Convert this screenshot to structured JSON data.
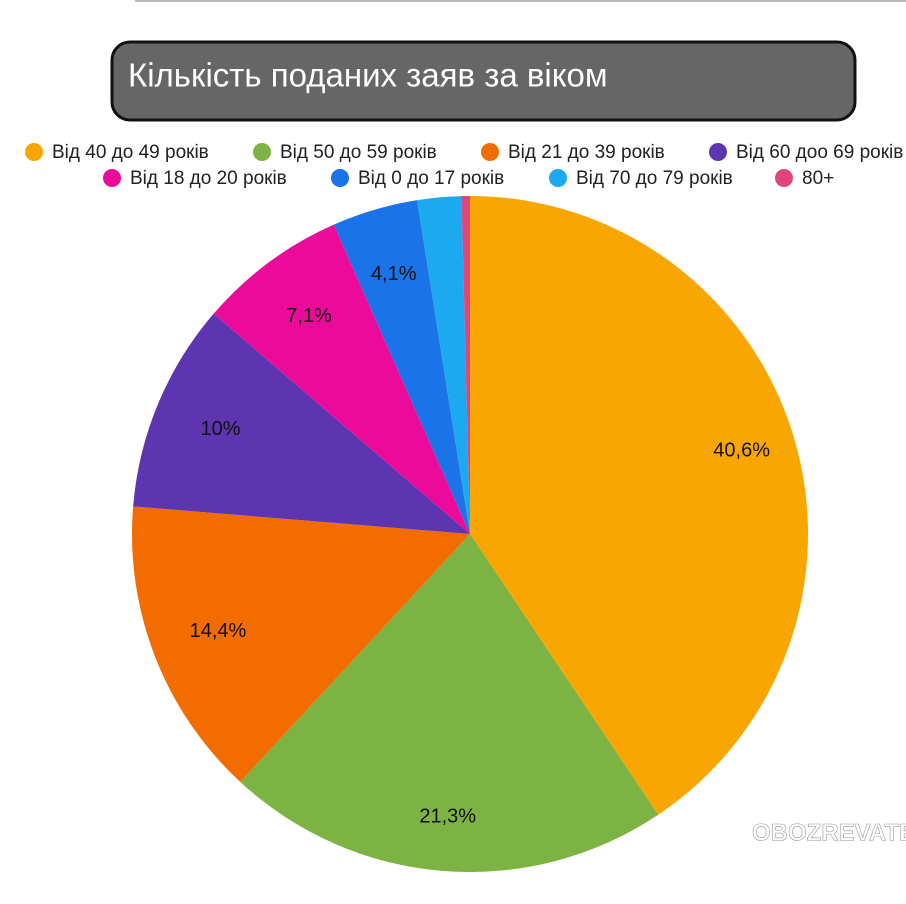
{
  "chart_data": {
    "type": "pie",
    "title": "Кількість поданих заяв за віком",
    "categories": [
      "Від 40 до 49 років",
      "Від 50 до 59 років",
      "Від 21 до 39 років",
      "Від 60 доо 69 років",
      "Від 18 до 20 років",
      "Від 0 до 17 років",
      "Від 70 до 79 років",
      "80+"
    ],
    "values": [
      40.6,
      21.3,
      14.4,
      10,
      7.1,
      4.1,
      2.1,
      0.4
    ],
    "value_labels": [
      "40,6%",
      "21,3%",
      "14,4%",
      "10%",
      "7,1%",
      "4,1%",
      null,
      null
    ],
    "colors": [
      "#f9a602",
      "#7cb342",
      "#f26c00",
      "#5e35b1",
      "#ec0a9a",
      "#1a73e8",
      "#1da9f0",
      "#e0457b"
    ],
    "watermark": "OBOZREVATEL"
  }
}
